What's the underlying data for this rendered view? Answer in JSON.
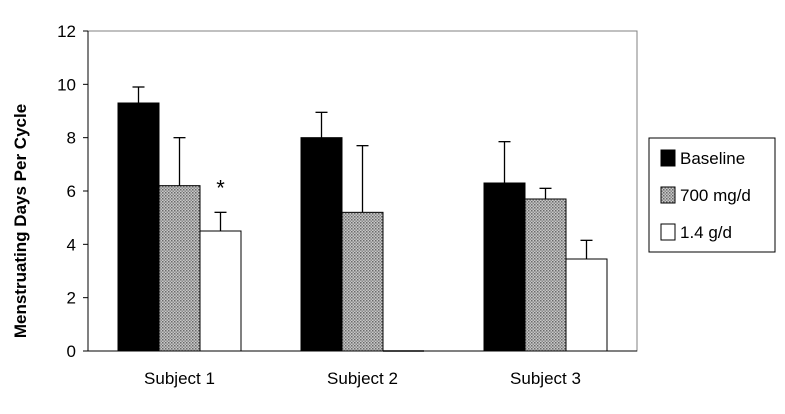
{
  "chart_data": {
    "type": "bar",
    "categories": [
      "Subject 1",
      "Subject 2",
      "Subject 3"
    ],
    "series": [
      {
        "name": "Baseline",
        "values": [
          9.3,
          8.0,
          6.3
        ],
        "errors": [
          0.6,
          0.95,
          1.55
        ],
        "fill": "#000000",
        "pattern": "solid"
      },
      {
        "name": "700 mg/d",
        "values": [
          6.2,
          5.2,
          5.7
        ],
        "errors": [
          1.8,
          2.5,
          0.4
        ],
        "fill": "#b0b0b0",
        "pattern": "dots"
      },
      {
        "name": "1.4 g/d",
        "values": [
          4.5,
          0.0,
          3.45
        ],
        "errors": [
          0.7,
          0.0,
          0.7
        ],
        "fill": "#ffffff",
        "pattern": "solid"
      }
    ],
    "title": "",
    "xlabel": "",
    "ylabel": "Menstruating Days Per Cycle",
    "ylim": [
      0,
      12
    ],
    "yticks": [
      0,
      2,
      4,
      6,
      8,
      10,
      12
    ],
    "grid": false,
    "legend": "right",
    "annotations": [
      {
        "text": "*",
        "category": "Subject 1",
        "series": "1.4 g/d"
      }
    ]
  }
}
